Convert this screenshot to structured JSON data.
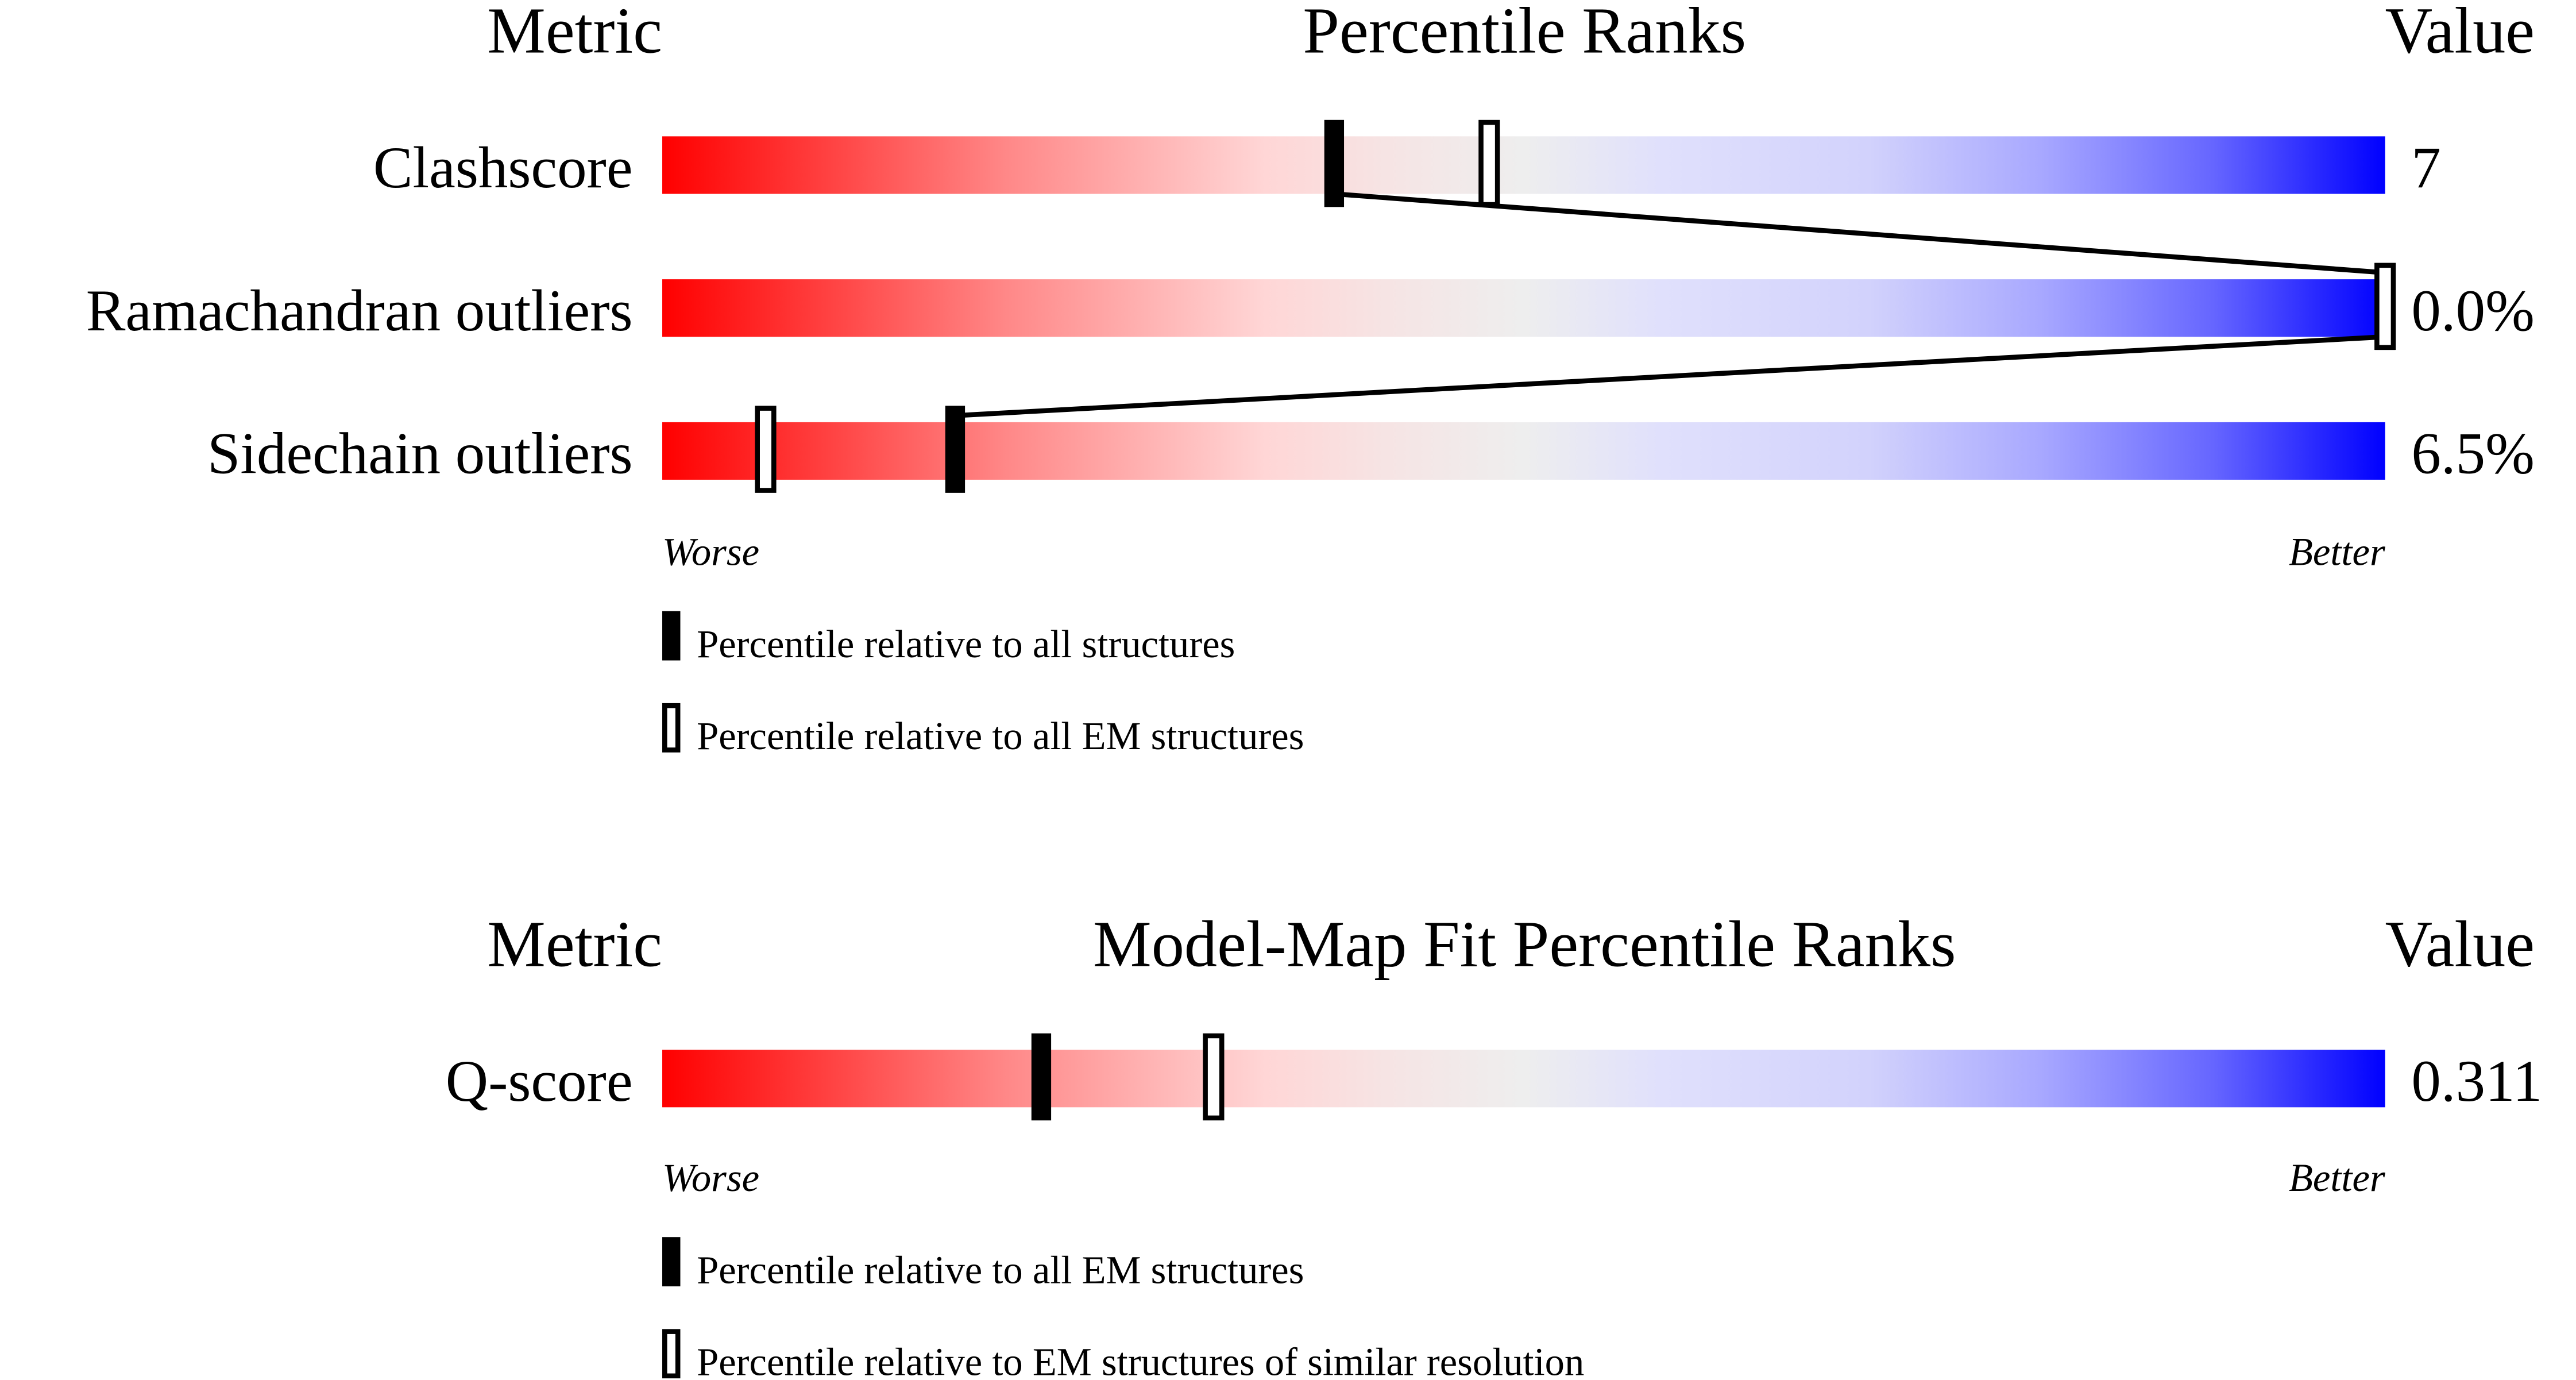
{
  "chart_data": [
    {
      "type": "bar",
      "headers": {
        "metric": "Metric",
        "title": "Percentile Ranks",
        "value": "Value"
      },
      "categories": [
        "Clashscore",
        "Ramachandran outliers",
        "Sidechain outliers"
      ],
      "values_printed": [
        "7",
        "0.0%",
        "6.5%"
      ],
      "series": [
        {
          "name": "Percentile relative to all structures",
          "marker": "filled",
          "values": [
            39,
            100,
            17
          ]
        },
        {
          "name": "Percentile relative to all EM structures",
          "marker": "hollow",
          "values": [
            48,
            100,
            6
          ]
        }
      ],
      "xlim": [
        0,
        100
      ],
      "axis_labels": {
        "left": "Worse",
        "right": "Better"
      },
      "connect_series": "Percentile relative to all structures"
    },
    {
      "type": "bar",
      "headers": {
        "metric": "Metric",
        "title": "Model-Map Fit Percentile Ranks",
        "value": "Value"
      },
      "categories": [
        "Q-score"
      ],
      "values_printed": [
        "0.311"
      ],
      "series": [
        {
          "name": "Percentile relative to all EM structures",
          "marker": "filled",
          "values": [
            22
          ]
        },
        {
          "name": "Percentile relative to EM structures of similar resolution",
          "marker": "hollow",
          "values": [
            32
          ]
        }
      ],
      "xlim": [
        0,
        100
      ],
      "axis_labels": {
        "left": "Worse",
        "right": "Better"
      }
    }
  ],
  "colors": {
    "worse": "#ff0000",
    "middle": "#eeeeee",
    "better": "#0000ff"
  }
}
